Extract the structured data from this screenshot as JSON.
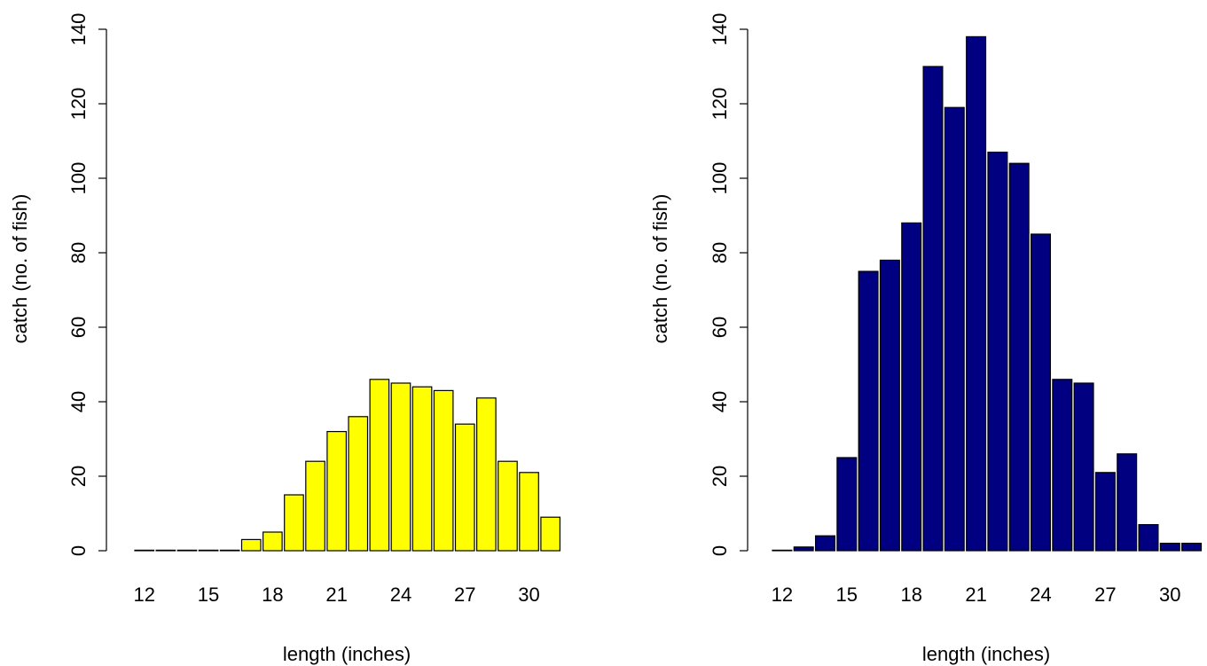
{
  "chart_data": [
    {
      "type": "bar",
      "title": "",
      "xlabel": "length (inches)",
      "ylabel": "catch (no. of fish)",
      "ylim": [
        0,
        140
      ],
      "yticks": [
        0,
        20,
        40,
        60,
        80,
        100,
        120,
        140
      ],
      "x_tick_labels": [
        "12",
        "15",
        "18",
        "21",
        "24",
        "27",
        "30"
      ],
      "categories": [
        12,
        13,
        14,
        15,
        16,
        17,
        18,
        19,
        20,
        21,
        22,
        23,
        24,
        25,
        26,
        27,
        28,
        29,
        30,
        31
      ],
      "values": [
        0,
        0,
        0,
        0,
        0,
        3,
        5,
        15,
        24,
        32,
        36,
        46,
        45,
        44,
        43,
        34,
        41,
        24,
        21,
        9
      ],
      "color": "#ffff00",
      "grid": false,
      "legend": "none"
    },
    {
      "type": "bar",
      "title": "",
      "xlabel": "length (inches)",
      "ylabel": "catch (no. of fish)",
      "ylim": [
        0,
        140
      ],
      "yticks": [
        0,
        20,
        40,
        60,
        80,
        100,
        120,
        140
      ],
      "x_tick_labels": [
        "12",
        "15",
        "18",
        "21",
        "24",
        "27",
        "30"
      ],
      "categories": [
        12,
        13,
        14,
        15,
        16,
        17,
        18,
        19,
        20,
        21,
        22,
        23,
        24,
        25,
        26,
        27,
        28,
        29,
        30,
        31
      ],
      "values": [
        0,
        1,
        4,
        25,
        75,
        78,
        88,
        130,
        119,
        138,
        107,
        104,
        85,
        46,
        45,
        21,
        26,
        7,
        2,
        2
      ],
      "color": "#000080",
      "grid": false,
      "legend": "none"
    }
  ]
}
